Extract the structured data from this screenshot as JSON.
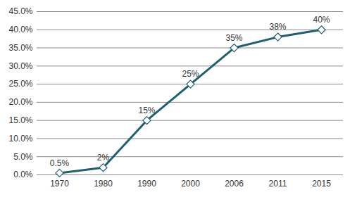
{
  "chart_data": {
    "type": "line",
    "categories": [
      "1970",
      "1980",
      "1990",
      "2000",
      "2006",
      "2011",
      "2015"
    ],
    "values": [
      0.5,
      2,
      15,
      25,
      35,
      38,
      40
    ],
    "value_labels": [
      "0.5%",
      "2%",
      "15%",
      "25%",
      "35%",
      "38%",
      "40%"
    ],
    "color": "#1f5f73",
    "marker": "diamond",
    "ylim": [
      0,
      45
    ],
    "yticks": [
      {
        "value": 0,
        "label": "0.0%"
      },
      {
        "value": 5,
        "label": "5.0%"
      },
      {
        "value": 10,
        "label": "10.0%"
      },
      {
        "value": 15,
        "label": "15.0%"
      },
      {
        "value": 20,
        "label": "20.0%"
      },
      {
        "value": 25,
        "label": "25.0%"
      },
      {
        "value": 30,
        "label": "30.0%"
      },
      {
        "value": 35,
        "label": "35.0%"
      },
      {
        "value": 40,
        "label": "40.0%"
      },
      {
        "value": 45,
        "label": "45.0%"
      }
    ],
    "grid": true,
    "data_labels": true
  }
}
